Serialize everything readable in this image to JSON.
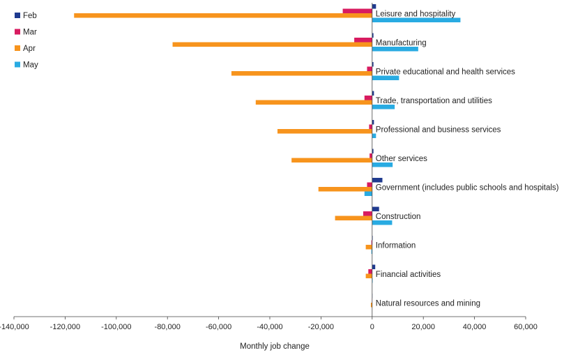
{
  "chart_data": {
    "type": "bar",
    "orientation": "horizontal",
    "categories": [
      "Leisure and hospitality",
      "Manufacturing",
      "Private educational and health services",
      "Trade, transportation and utilities",
      "Professional and business services",
      "Other services",
      "Government (includes public schools and hospitals)",
      "Construction",
      "Information",
      "Financial activities",
      "Natural resources and mining"
    ],
    "series": [
      {
        "name": "Feb",
        "color": "#1f3a8f",
        "values": [
          1500,
          500,
          500,
          700,
          700,
          500,
          4000,
          2700,
          200,
          1200,
          100
        ]
      },
      {
        "name": "Mar",
        "color": "#d81b60",
        "values": [
          -11500,
          -7000,
          -2000,
          -3000,
          -1200,
          -1000,
          -2000,
          -3500,
          -300,
          -1500,
          -100
        ]
      },
      {
        "name": "Apr",
        "color": "#f7941d",
        "values": [
          -116500,
          -78000,
          -55000,
          -45500,
          -37000,
          -31500,
          -21000,
          -14500,
          -2500,
          -2500,
          -500
        ]
      },
      {
        "name": "May",
        "color": "#29abe2",
        "values": [
          34500,
          18000,
          10500,
          8800,
          1500,
          8000,
          -3000,
          7800,
          -300,
          200,
          0
        ]
      }
    ],
    "xlabel": "Monthly job change",
    "ylabel": "",
    "xlim": [
      -140000,
      60000
    ],
    "xticks": [
      -140000,
      -120000,
      -100000,
      -80000,
      -60000,
      -40000,
      -20000,
      0,
      20000,
      40000,
      60000
    ],
    "xtick_labels": [
      "-140,000",
      "-120,000",
      "-100,000",
      "-80,000",
      "-60,000",
      "-40,000",
      "-20,000",
      "0",
      "20,000",
      "40,000",
      "60,000"
    ],
    "grid": false,
    "legend_position": "top-left"
  }
}
